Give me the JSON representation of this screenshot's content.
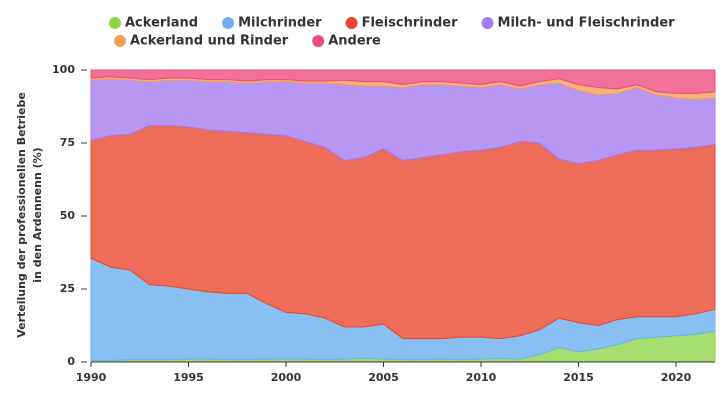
{
  "chart_data": {
    "type": "stacked-area",
    "ylabel": [
      "Verteilung der professionellen Betriebe",
      "in den Ardennenn (%)"
    ],
    "x": [
      1990,
      1991,
      1992,
      1993,
      1994,
      1995,
      1996,
      1997,
      1998,
      1999,
      2000,
      2001,
      2002,
      2003,
      2004,
      2005,
      2006,
      2007,
      2008,
      2009,
      2010,
      2011,
      2012,
      2013,
      2014,
      2015,
      2016,
      2017,
      2018,
      2019,
      2020,
      2021,
      2022
    ],
    "xlim": [
      1990,
      2022
    ],
    "xticks": [
      1990,
      1995,
      2000,
      2005,
      2010,
      2015,
      2020
    ],
    "ylim": [
      0,
      100
    ],
    "yticks": [
      0,
      25,
      50,
      75,
      100
    ],
    "series": [
      {
        "name": "Ackerland",
        "color": "#8ed44a",
        "values": [
          0.5,
          0.5,
          0.8,
          0.8,
          0.8,
          1,
          1,
          0.8,
          0.8,
          1,
          1,
          1,
          0.8,
          1,
          1.3,
          1,
          0.8,
          0.8,
          1,
          0.8,
          1,
          1.2,
          1,
          2.5,
          5,
          3.5,
          4.5,
          6,
          8,
          8.5,
          9,
          9.5,
          10.5
        ]
      },
      {
        "name": "Milchrinder",
        "color": "#6cb0f0",
        "values": [
          35,
          32,
          30.7,
          25.7,
          25.2,
          24,
          23,
          22.7,
          22.7,
          19,
          16,
          15.5,
          14.2,
          11,
          10.7,
          12,
          7.2,
          7.2,
          7,
          7.7,
          7.5,
          6.8,
          8,
          8.5,
          10,
          10,
          8,
          8.5,
          7.5,
          7,
          6.5,
          7,
          7.5
        ]
      },
      {
        "name": "Fleischrinder",
        "color": "#e8482f",
        "values": [
          40.5,
          45,
          46.5,
          54.5,
          55,
          55.5,
          55.5,
          55.5,
          55,
          58,
          60.5,
          59,
          58.5,
          57,
          58,
          60,
          61,
          62,
          63,
          63.5,
          64,
          65.5,
          66.5,
          64,
          54.5,
          54.5,
          56.5,
          56.5,
          57,
          57,
          57.5,
          57,
          56.5
        ]
      },
      {
        "name": "Milch- und Fleischrinder",
        "color": "#a67cf0",
        "values": [
          20.5,
          19.5,
          18.5,
          15,
          15.5,
          16,
          16.5,
          17,
          17,
          18,
          18.5,
          20,
          22,
          26,
          24.5,
          21.5,
          25,
          25,
          24,
          22.5,
          21.5,
          21.5,
          18,
          20,
          26,
          25,
          22.5,
          21,
          21.5,
          19,
          17.5,
          16.5,
          16
        ]
      },
      {
        "name": "Ackerland und Rinder",
        "color": "#f4a05a",
        "values": [
          0.7,
          0.7,
          0.7,
          0.7,
          0.7,
          0.7,
          0.7,
          0.7,
          0.7,
          0.7,
          0.7,
          0.7,
          0.7,
          1.5,
          1.5,
          1.5,
          1,
          1,
          1,
          1,
          1,
          1,
          1,
          1,
          1.5,
          2,
          2.5,
          1.5,
          1,
          1,
          1.5,
          2,
          2
        ]
      },
      {
        "name": "Andere",
        "color": "#ee4d80",
        "values": [
          2.8,
          2.3,
          2.8,
          3.3,
          2.8,
          2.8,
          3.3,
          3.3,
          3.8,
          3.3,
          3.3,
          3.8,
          3.8,
          3.5,
          4,
          4,
          5,
          4,
          4,
          4.5,
          5,
          4,
          5.5,
          4,
          3,
          5,
          6,
          6.5,
          5,
          7.5,
          8,
          8,
          7.5
        ]
      }
    ]
  }
}
